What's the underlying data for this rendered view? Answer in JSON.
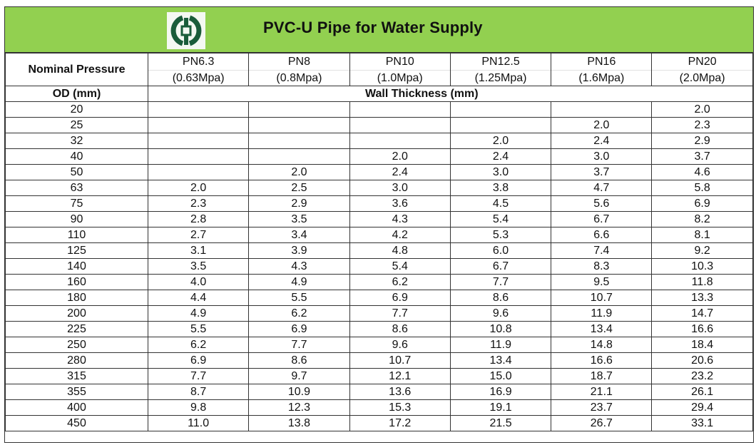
{
  "title": "PVC-U Pipe for Water Supply",
  "logo": {
    "icon": "company-logo-icon",
    "colors": {
      "primary": "#1a5c3a",
      "background": "#f4f8f2"
    }
  },
  "colors": {
    "title_band": "#92d050",
    "border": "#333333"
  },
  "header": {
    "nominal_pressure_label": "Nominal Pressure",
    "od_label": "OD (mm)",
    "wall_thickness_label": "Wall Thickness (mm)",
    "columns": [
      {
        "pn": "PN6.3",
        "mpa": "(0.63Mpa)"
      },
      {
        "pn": "PN8",
        "mpa": "(0.8Mpa)"
      },
      {
        "pn": "PN10",
        "mpa": "(1.0Mpa)"
      },
      {
        "pn": "PN12.5",
        "mpa": "(1.25Mpa)"
      },
      {
        "pn": "PN16",
        "mpa": "(1.6Mpa)"
      },
      {
        "pn": "PN20",
        "mpa": "(2.0Mpa)"
      }
    ]
  },
  "rows": [
    {
      "od": "20",
      "values": [
        "",
        "",
        "",
        "",
        "",
        "2.0"
      ]
    },
    {
      "od": "25",
      "values": [
        "",
        "",
        "",
        "",
        "2.0",
        "2.3"
      ]
    },
    {
      "od": "32",
      "values": [
        "",
        "",
        "",
        "2.0",
        "2.4",
        "2.9"
      ]
    },
    {
      "od": "40",
      "values": [
        "",
        "",
        "2.0",
        "2.4",
        "3.0",
        "3.7"
      ]
    },
    {
      "od": "50",
      "values": [
        "",
        "2.0",
        "2.4",
        "3.0",
        "3.7",
        "4.6"
      ]
    },
    {
      "od": "63",
      "values": [
        "2.0",
        "2.5",
        "3.0",
        "3.8",
        "4.7",
        "5.8"
      ]
    },
    {
      "od": "75",
      "values": [
        "2.3",
        "2.9",
        "3.6",
        "4.5",
        "5.6",
        "6.9"
      ]
    },
    {
      "od": "90",
      "values": [
        "2.8",
        "3.5",
        "4.3",
        "5.4",
        "6.7",
        "8.2"
      ]
    },
    {
      "od": "110",
      "values": [
        "2.7",
        "3.4",
        "4.2",
        "5.3",
        "6.6",
        "8.1"
      ]
    },
    {
      "od": "125",
      "values": [
        "3.1",
        "3.9",
        "4.8",
        "6.0",
        "7.4",
        "9.2"
      ]
    },
    {
      "od": "140",
      "values": [
        "3.5",
        "4.3",
        "5.4",
        "6.7",
        "8.3",
        "10.3"
      ]
    },
    {
      "od": "160",
      "values": [
        "4.0",
        "4.9",
        "6.2",
        "7.7",
        "9.5",
        "11.8"
      ]
    },
    {
      "od": "180",
      "values": [
        "4.4",
        "5.5",
        "6.9",
        "8.6",
        "10.7",
        "13.3"
      ]
    },
    {
      "od": "200",
      "values": [
        "4.9",
        "6.2",
        "7.7",
        "9.6",
        "11.9",
        "14.7"
      ]
    },
    {
      "od": "225",
      "values": [
        "5.5",
        "6.9",
        "8.6",
        "10.8",
        "13.4",
        "16.6"
      ]
    },
    {
      "od": "250",
      "values": [
        "6.2",
        "7.7",
        "9.6",
        "11.9",
        "14.8",
        "18.4"
      ]
    },
    {
      "od": "280",
      "values": [
        "6.9",
        "8.6",
        "10.7",
        "13.4",
        "16.6",
        "20.6"
      ]
    },
    {
      "od": "315",
      "values": [
        "7.7",
        "9.7",
        "12.1",
        "15.0",
        "18.7",
        "23.2"
      ]
    },
    {
      "od": "355",
      "values": [
        "8.7",
        "10.9",
        "13.6",
        "16.9",
        "21.1",
        "26.1"
      ]
    },
    {
      "od": "400",
      "values": [
        "9.8",
        "12.3",
        "15.3",
        "19.1",
        "23.7",
        "29.4"
      ]
    },
    {
      "od": "450",
      "values": [
        "11.0",
        "13.8",
        "17.2",
        "21.5",
        "26.7",
        "33.1"
      ]
    }
  ]
}
